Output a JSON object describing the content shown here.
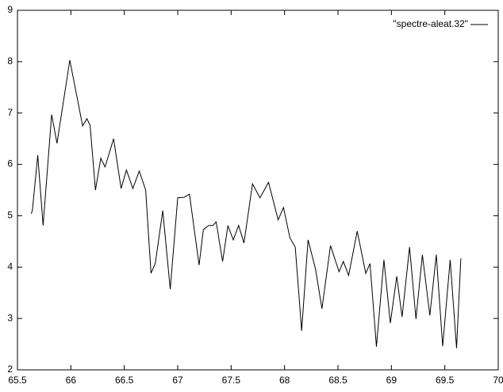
{
  "chart_data": {
    "type": "line",
    "x": [
      65.63,
      65.64,
      65.69,
      65.74,
      65.82,
      65.87,
      65.99,
      66.11,
      66.15,
      66.18,
      66.23,
      66.28,
      66.32,
      66.4,
      66.47,
      66.52,
      66.58,
      66.64,
      66.7,
      66.75,
      66.79,
      66.86,
      66.93,
      67.0,
      67.06,
      67.11,
      67.2,
      67.24,
      67.29,
      67.33,
      67.36,
      67.42,
      67.47,
      67.52,
      67.57,
      67.62,
      67.7,
      67.77,
      67.85,
      67.94,
      67.99,
      68.05,
      68.1,
      68.16,
      68.22,
      68.29,
      68.35,
      68.43,
      68.51,
      68.55,
      68.6,
      68.68,
      68.76,
      68.8,
      68.86,
      68.93,
      68.99,
      69.05,
      69.1,
      69.17,
      69.23,
      69.29,
      69.36,
      69.42,
      69.48,
      69.55,
      69.61,
      69.65
    ],
    "series": [
      {
        "name": "\"spectre-aleat.32\"",
        "color": "#000000",
        "values": [
          5.04,
          5.11,
          6.18,
          4.81,
          6.97,
          6.41,
          8.03,
          6.75,
          6.89,
          6.76,
          5.5,
          6.12,
          5.95,
          6.5,
          5.53,
          5.89,
          5.53,
          5.87,
          5.5,
          3.88,
          4.07,
          5.1,
          3.57,
          5.35,
          5.36,
          5.42,
          4.04,
          4.73,
          4.81,
          4.81,
          4.88,
          4.11,
          4.81,
          4.53,
          4.81,
          4.47,
          5.62,
          5.35,
          5.65,
          4.92,
          5.16,
          4.57,
          4.39,
          2.76,
          4.53,
          3.96,
          3.19,
          4.42,
          3.91,
          4.11,
          3.84,
          4.7,
          3.88,
          4.07,
          2.45,
          4.14,
          2.91,
          3.82,
          3.03,
          4.39,
          2.99,
          4.24,
          3.06,
          4.24,
          2.46,
          4.14,
          2.42,
          4.17
        ]
      }
    ],
    "xlim": [
      65.5,
      70
    ],
    "xticks": [
      65.5,
      66,
      66.5,
      67,
      67.5,
      68,
      68.5,
      69,
      69.5,
      70
    ],
    "ylim": [
      2,
      9
    ],
    "yticks": [
      2,
      3,
      4,
      5,
      6,
      7,
      8,
      9
    ],
    "legend": "top-right"
  }
}
